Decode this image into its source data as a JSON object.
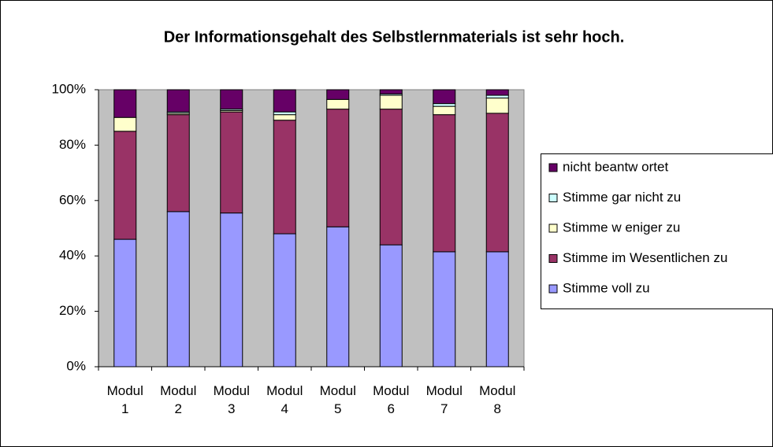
{
  "chart_data": {
    "type": "stacked_bar",
    "title": "Der Informationsgehalt des Selbstlernmaterials ist sehr hoch.",
    "categories": [
      "Modul 1",
      "Modul 2",
      "Modul 3",
      "Modul 4",
      "Modul 5",
      "Modul 6",
      "Modul 7",
      "Modul 8"
    ],
    "series": [
      {
        "name": "Stimme voll zu",
        "color": "#9999ff",
        "values": [
          46,
          56,
          55.5,
          48,
          50.5,
          44,
          41.5,
          41.5
        ]
      },
      {
        "name": "Stimme im Wesentlichen zu",
        "color": "#993366",
        "values": [
          39,
          35,
          36.5,
          41,
          42.5,
          49,
          49.5,
          50
        ]
      },
      {
        "name": "Stimme w eniger zu",
        "color": "#ffffcc",
        "values": [
          5,
          0.5,
          0.5,
          2,
          3.5,
          5,
          3,
          5.5
        ]
      },
      {
        "name": "Stimme gar nicht zu",
        "color": "#ccffff",
        "values": [
          0,
          0.5,
          0.5,
          1,
          0,
          0.5,
          1,
          1
        ]
      },
      {
        "name": "nicht beantw ortet",
        "color": "#660066",
        "values": [
          10,
          8,
          7,
          8,
          3.5,
          1.5,
          5,
          2
        ]
      }
    ],
    "ylim": [
      0,
      100
    ],
    "yticks": [
      {
        "value": 0,
        "label": "0%"
      },
      {
        "value": 20,
        "label": "20%"
      },
      {
        "value": 40,
        "label": "40%"
      },
      {
        "value": 60,
        "label": "60%"
      },
      {
        "value": 80,
        "label": "80%"
      },
      {
        "value": 100,
        "label": "100%"
      }
    ],
    "plot_background": "#c0c0c0"
  }
}
